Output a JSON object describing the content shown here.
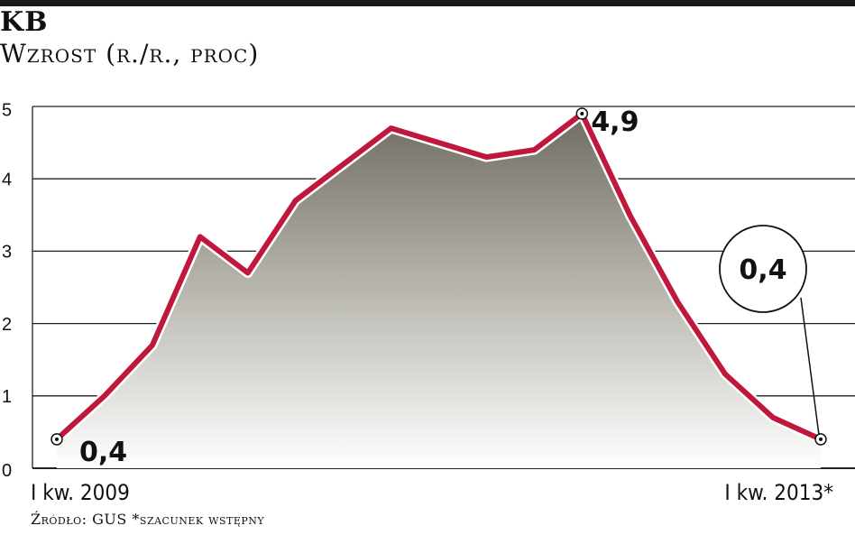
{
  "header": {
    "title": "KB",
    "subtitle": "Wzrost (r./r., proc)"
  },
  "footer": {
    "source": "Źródło: GUS *szacunek wstępny"
  },
  "colors": {
    "line": "#c0173d",
    "fill_top": "#6f6d62",
    "fill_bottom": "#ffffff",
    "grid": "#222222"
  },
  "chart_data": {
    "type": "area",
    "title": "KB",
    "subtitle": "Wzrost (r./r., proc)",
    "xlabel": "",
    "ylabel": "",
    "ylim": [
      0,
      5
    ],
    "yticks": [
      "0",
      "1",
      "2",
      "3",
      "4",
      "5"
    ],
    "x_tick_labels": [
      "I kw. 2009",
      "I kw. 2013*"
    ],
    "grid": true,
    "legend": "none",
    "series": [
      {
        "values": [
          0.4,
          1.0,
          1.7,
          3.2,
          2.7,
          3.7,
          4.2,
          4.7,
          4.5,
          4.3,
          4.4,
          4.9,
          3.5,
          2.3,
          1.3,
          0.7,
          0.4
        ]
      }
    ],
    "annotations": [
      {
        "index": 0,
        "text": "0,4"
      },
      {
        "index": 11,
        "text": "4,9"
      },
      {
        "index": 16,
        "text": "0,4",
        "style": "circle"
      }
    ]
  }
}
